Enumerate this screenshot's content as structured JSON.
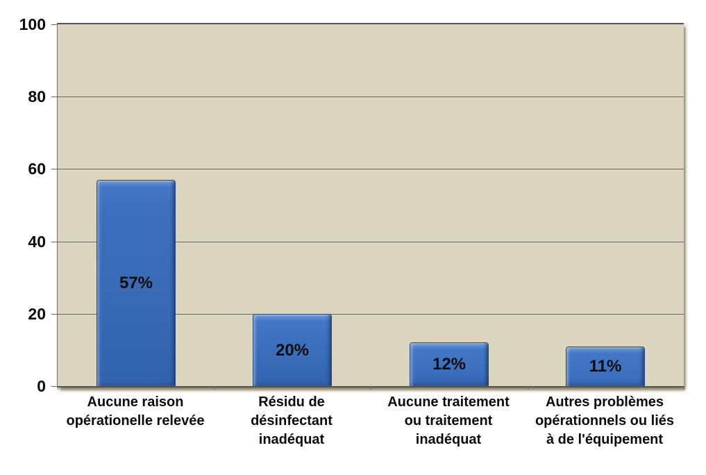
{
  "chart_data": {
    "type": "bar",
    "title": "",
    "xlabel": "",
    "ylabel": "",
    "ylim": [
      0,
      100
    ],
    "y_ticks": [
      0,
      20,
      40,
      60,
      80,
      100
    ],
    "y_tick_labels": [
      "0",
      "20",
      "40",
      "60",
      "80",
      "100"
    ],
    "grid": true,
    "legend": false,
    "categories": [
      "Aucune raison opérationelle relevée",
      "Résidu de désinfectant inadéquat",
      "Aucune traitement ou traitement inadéquat",
      "Autres problèmes opérationnels ou liés à de l'équipement"
    ],
    "category_lines": [
      [
        "Aucune raison",
        "opérationelle relevée"
      ],
      [
        "Résidu de",
        "désinfectant",
        "inadéquat"
      ],
      [
        "Aucune traitement",
        "ou traitement",
        "inadéquat"
      ],
      [
        "Autres problèmes",
        "opérationnels ou liés",
        "à de l'équipement"
      ]
    ],
    "values": [
      57,
      20,
      12,
      11
    ],
    "value_labels": [
      "57%",
      "20%",
      "12%",
      "11%"
    ],
    "colors": {
      "bar_fill": "#3c70be",
      "bar_border": "#27497f",
      "plot_background": "#dbd5bf",
      "gridline": "#6b685c",
      "axis": "#54524a",
      "text": "#0b0b0b",
      "outer_background": "#ffffff"
    }
  }
}
